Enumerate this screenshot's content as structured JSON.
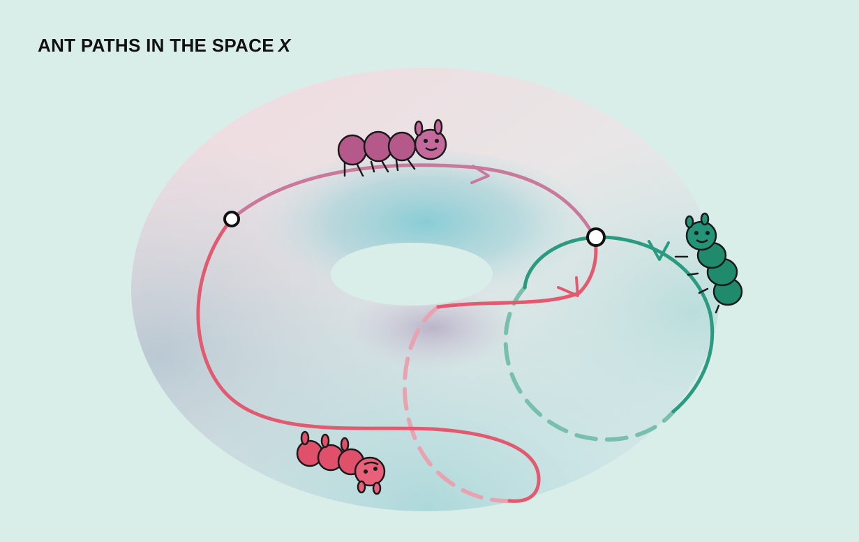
{
  "title": {
    "text": "ANT PATHS IN THE SPACE",
    "variable": "X"
  },
  "colors": {
    "background": "#daeee9",
    "pink_path": "#c97a9c",
    "red_path": "#e25a70",
    "green_path": "#2a9a80",
    "purple_ant": "#b5598a",
    "red_ant": "#e0506a",
    "green_ant": "#1f8a6c"
  }
}
